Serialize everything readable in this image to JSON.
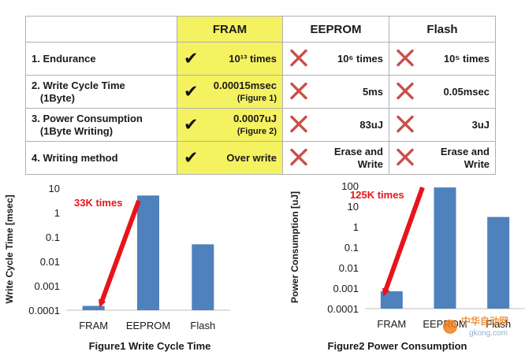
{
  "table": {
    "headers": [
      "",
      "FRAM",
      "EEPROM",
      "Flash"
    ],
    "rows": [
      {
        "label": "1. Endurance",
        "fram": {
          "mark": "check-icon",
          "text": "10¹³ times",
          "note": ""
        },
        "eeprom": {
          "mark": "cross-icon",
          "text": "10⁶ times",
          "note": ""
        },
        "flash": {
          "mark": "cross-icon",
          "text": "10⁵ times",
          "note": ""
        }
      },
      {
        "label": "2. Write Cycle Time\n   (1Byte)",
        "fram": {
          "mark": "check-icon",
          "text": "0.00015msec",
          "note": "(Figure 1)"
        },
        "eeprom": {
          "mark": "cross-icon",
          "text": "5ms",
          "note": ""
        },
        "flash": {
          "mark": "cross-icon",
          "text": "0.05msec",
          "note": ""
        }
      },
      {
        "label": "3. Power Consumption\n   (1Byte Writing)",
        "fram": {
          "mark": "check-icon",
          "text": "0.0007uJ",
          "note": "(Figure 2)"
        },
        "eeprom": {
          "mark": "cross-icon",
          "text": "83uJ",
          "note": ""
        },
        "flash": {
          "mark": "cross-icon",
          "text": "3uJ",
          "note": ""
        }
      },
      {
        "label": "4. Writing method",
        "fram": {
          "mark": "check-icon",
          "text": "Over write",
          "note": ""
        },
        "eeprom": {
          "mark": "cross-icon",
          "text": "Erase and\nWrite",
          "note": ""
        },
        "flash": {
          "mark": "cross-icon",
          "text": "Erase and\nWrite",
          "note": ""
        }
      }
    ]
  },
  "colors": {
    "fram_highlight": "#f5f261",
    "bar": "#4f81bd",
    "arrow": "#e8141b",
    "cross": "#c9504a",
    "watermark_orange": "#f07f1a"
  },
  "watermark": {
    "text_top": "中华自动网",
    "text_bottom": "gkong.com"
  },
  "chart_data": [
    {
      "type": "bar",
      "title": "Figure1 Write Cycle Time",
      "xlabel": "",
      "ylabel": "Write Cycle Time [msec]",
      "yscale": "log",
      "ylim": [
        0.0001,
        10
      ],
      "yticks": [
        "0.0001",
        "0.001",
        "0.01",
        "0.1",
        "1",
        "10"
      ],
      "categories": [
        "FRAM",
        "EEPROM",
        "Flash"
      ],
      "values": [
        0.00015,
        5,
        0.05
      ],
      "annotation": "33K times",
      "grid": false
    },
    {
      "type": "bar",
      "title": "Figure2 Power Consumption",
      "xlabel": "",
      "ylabel": "Power Consumption [uJ]",
      "yscale": "log",
      "ylim": [
        0.0001,
        100
      ],
      "yticks": [
        "0.0001",
        "0.001",
        "0.01",
        "0.1",
        "1",
        "10",
        "100"
      ],
      "categories": [
        "FRAM",
        "EEPROM",
        "Flash"
      ],
      "values": [
        0.0007,
        83,
        3
      ],
      "annotation": "125K times",
      "grid": false
    }
  ]
}
